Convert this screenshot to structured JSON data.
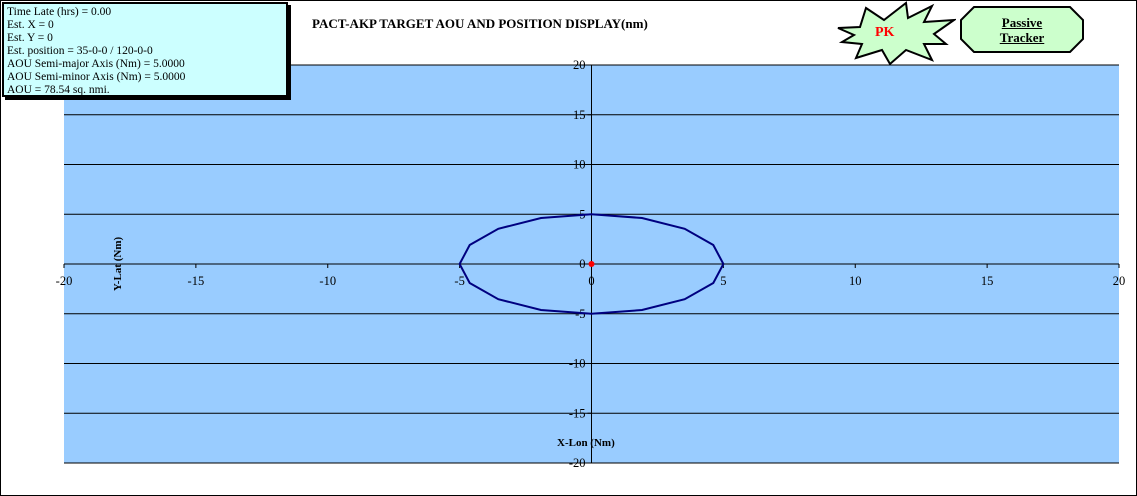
{
  "info": {
    "time_late": "Time Late (hrs) = 0.00",
    "est_x": "Est. X = 0",
    "est_y": "Est. Y = 0",
    "est_position": "Est. position = 35-0-0 / 120-0-0",
    "semi_major": "AOU Semi-major Axis (Nm) = 5.0000",
    "semi_minor": "AOU Semi-minor Axis (Nm) = 5.0000",
    "aou": "AOU =  78.54 sq. nmi."
  },
  "badge": {
    "label": "PK",
    "text_color": "#ff0000",
    "fill": "#ccffcc"
  },
  "passive_tracker": {
    "line1": "Passive",
    "line2": "Tracker",
    "fill": "#ccffcc"
  },
  "colors": {
    "plot_area": "#99ccff",
    "info_box": "#ccffff",
    "ellipse": "#000080",
    "center_point": "#ff0000"
  },
  "chart_data": {
    "type": "scatter",
    "title": "PACT-AKP TARGET AOU AND POSITION DISPLAY(nm)",
    "xlabel": "X-Lon (Nm)",
    "ylabel": "Y-Lat (Nm)",
    "xlim": [
      -20,
      20
    ],
    "ylim": [
      -20,
      20
    ],
    "x_ticks": [
      -20,
      -15,
      -10,
      -5,
      0,
      5,
      10,
      15,
      20
    ],
    "y_ticks": [
      -20,
      -15,
      -10,
      -5,
      0,
      5,
      10,
      15,
      20
    ],
    "horizontal_gridlines": true,
    "series": [
      {
        "kind": "ellipse",
        "center": [
          0,
          0
        ],
        "semi_major": 5,
        "semi_minor": 5,
        "color": "#000080"
      },
      {
        "kind": "point",
        "x": [
          0
        ],
        "y": [
          0
        ],
        "color": "#ff0000"
      }
    ]
  }
}
